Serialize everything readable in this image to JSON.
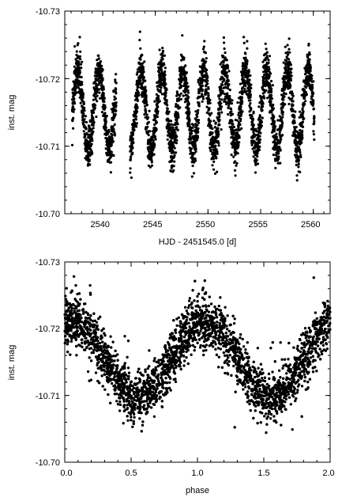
{
  "chart_data": [
    {
      "type": "scatter",
      "title": "",
      "xlabel": "HJD - 2451545.0 [d]",
      "ylabel": "inst. mag",
      "xlim": [
        2536.4,
        2561.6
      ],
      "ylim": [
        -10.73,
        -10.7
      ],
      "y_inverted": true,
      "xticks": [
        2540,
        2545,
        2550,
        2555,
        2560
      ],
      "xtick_labels": [
        "2540",
        "2545",
        "2550",
        "2555",
        "2560"
      ],
      "yticks": [
        -10.73,
        -10.72,
        -10.71,
        -10.7
      ],
      "ytick_labels": [
        "-10.73",
        "-10.72",
        "-10.71",
        "-10.70"
      ],
      "grid": false,
      "marker_color": "#000000",
      "observing_segments": [
        [
          2537.1,
          2541.3
        ],
        [
          2542.6,
          2560.1
        ]
      ],
      "period_days": 1.99,
      "phase_zero_hjd": 2537.65,
      "mean_mag": -10.7155,
      "semi_amplitude_mag": 0.0058,
      "scatter_mag": 0.0019,
      "n_points": 3400
    },
    {
      "type": "scatter",
      "title": "",
      "xlabel": "phase",
      "ylabel": "inst. mag",
      "xlim": [
        0.0,
        2.0
      ],
      "ylim": [
        -10.73,
        -10.7
      ],
      "y_inverted": true,
      "xticks": [
        0.0,
        0.5,
        1.0,
        1.5,
        2.0
      ],
      "xtick_labels": [
        "0.0",
        "0.5",
        "1.0",
        "1.5",
        "2.0"
      ],
      "yticks": [
        -10.73,
        -10.72,
        -10.71,
        -10.7
      ],
      "ytick_labels": [
        "-10.73",
        "-10.72",
        "-10.71",
        "-10.70"
      ],
      "grid": false,
      "marker_color": "#000000",
      "folded_period_days": 1.99,
      "phase_of_maximum": [
        0.05,
        1.05
      ],
      "phase_of_minimum": [
        0.55,
        1.55
      ],
      "mean_mag": -10.7155,
      "semi_amplitude_mag": 0.0058,
      "scatter_mag": 0.0019,
      "n_points": 6800
    }
  ]
}
